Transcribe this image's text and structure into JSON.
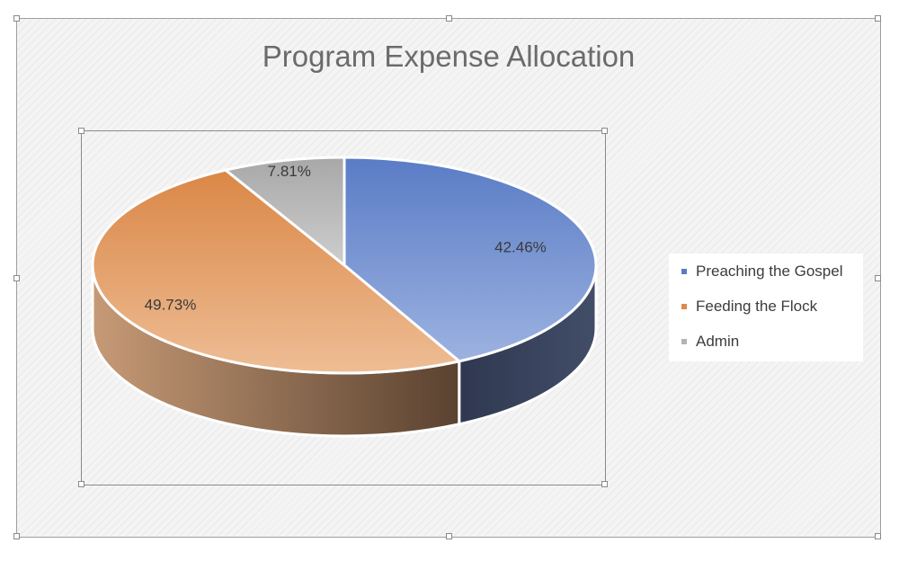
{
  "chart_data": {
    "type": "pie",
    "title": "Program Expense Allocation",
    "categories": [
      "Preaching the Gospel",
      "Feeding the Flock",
      "Admin"
    ],
    "values": [
      42.46,
      49.73,
      7.81
    ],
    "data_labels": [
      "42.46%",
      "49.73%",
      "7.81%"
    ],
    "colors": [
      "#7f9bd4",
      "#e8aa78",
      "#bdbdbd"
    ],
    "style": "3d-pie",
    "legend_position": "right"
  }
}
